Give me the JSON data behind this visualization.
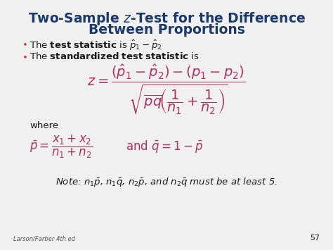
{
  "bg_color": "#f0f0f0",
  "title_color": "#1a3a6b",
  "bullet_color": "#c0392b",
  "text_color": "#1a1a1a",
  "formula_color": "#b03060",
  "footer_text": "Larson/Farber 4th ed",
  "page_number": "57",
  "title_fontsize": 13.5,
  "body_fontsize": 9.5,
  "formula_fontsize": 10,
  "note_fontsize": 9.5
}
